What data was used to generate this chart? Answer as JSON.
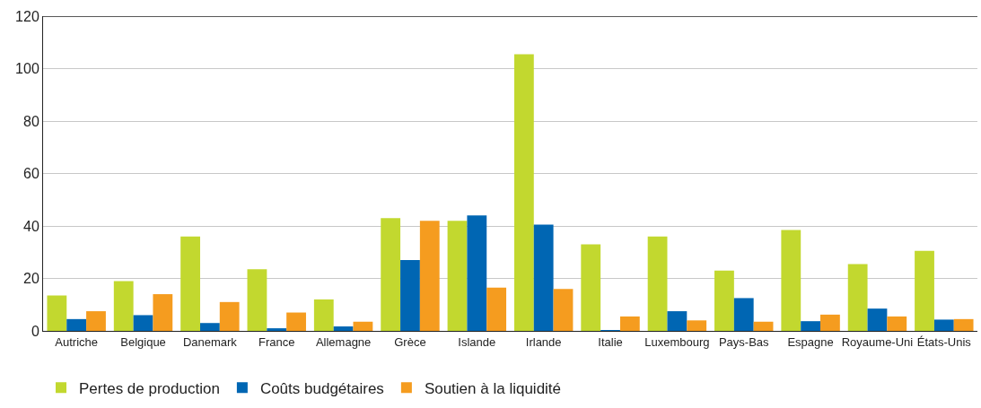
{
  "chart_data": {
    "type": "bar",
    "categories": [
      "Autriche",
      "Belgique",
      "Danemark",
      "France",
      "Allemagne",
      "Grèce",
      "Islande",
      "Irlande",
      "Italie",
      "Luxembourg",
      "Pays-Bas",
      "Espagne",
      "Royaume-Uni",
      "États-Unis"
    ],
    "series": [
      {
        "name": "Pertes de production",
        "color": "#c2d82f",
        "values": [
          13.5,
          19,
          36,
          23.5,
          12,
          43,
          42,
          105.5,
          33,
          36,
          23,
          38.5,
          25.5,
          30.5
        ]
      },
      {
        "name": "Coûts budgétaires",
        "color": "#0066b3",
        "values": [
          4.5,
          6,
          3,
          1,
          1.7,
          27,
          44,
          40.5,
          0.3,
          7.5,
          12.5,
          3.7,
          8.5,
          4.3
        ]
      },
      {
        "name": "Soutien à la liquidité",
        "color": "#f59c1f",
        "values": [
          7.5,
          14,
          11,
          7,
          3.5,
          42,
          16.5,
          16,
          5.5,
          4,
          3.5,
          6.2,
          5.5,
          4.5
        ]
      }
    ],
    "ylim": [
      0,
      120
    ],
    "yticks": [
      0,
      20,
      40,
      60,
      80,
      100,
      120
    ],
    "grid": "y",
    "legend": "bottom left"
  }
}
